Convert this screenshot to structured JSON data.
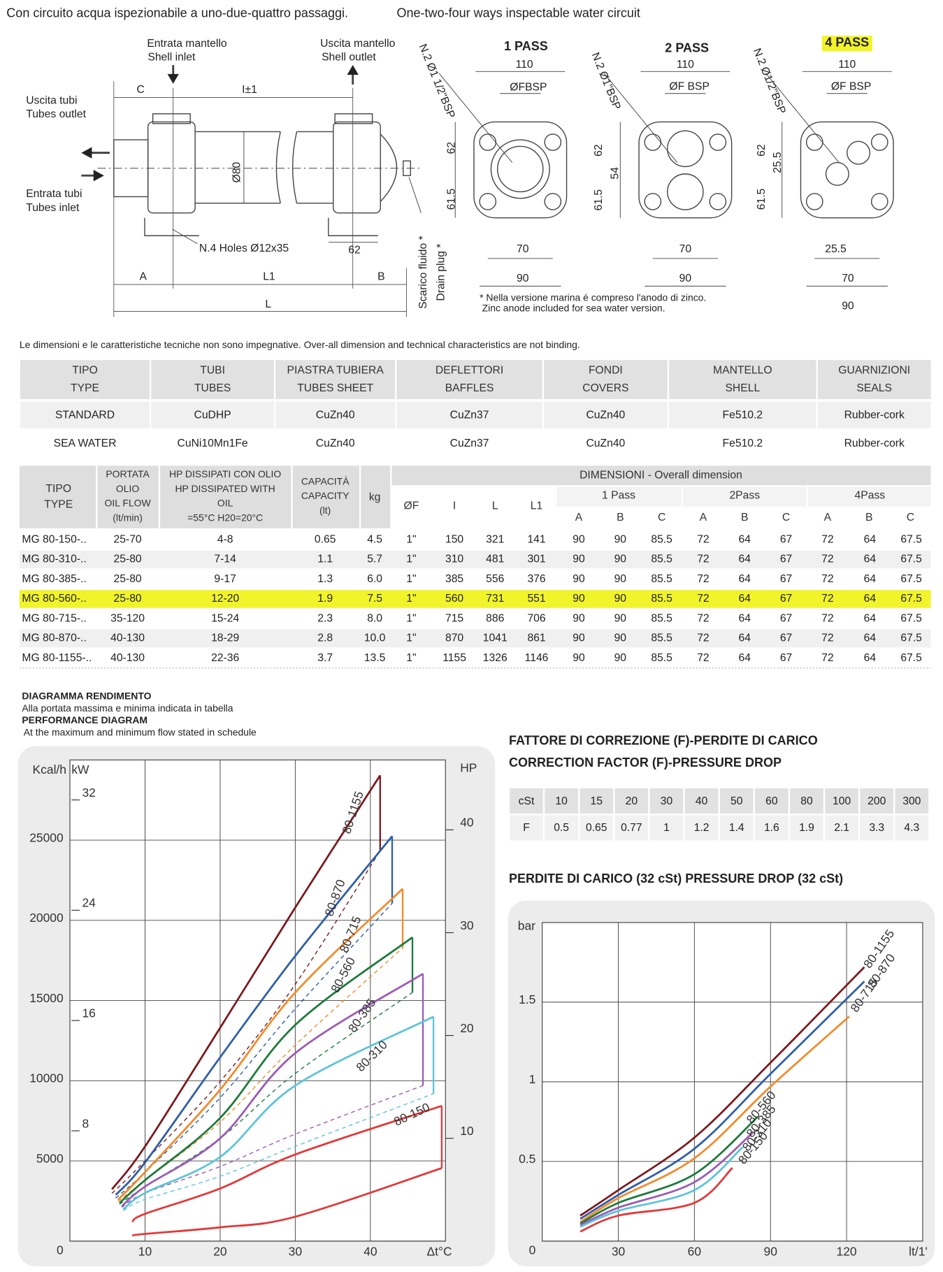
{
  "header": {
    "left": "Con circuito acqua ispezionabile a uno-due-quattro passaggi.",
    "right": "One-two-four ways inspectable water circuit"
  },
  "drawing": {
    "side_labels": [
      "Entrata mantello",
      "Shell inlet",
      "Uscita mantello",
      "Shell outlet",
      "Uscita tubi",
      "Tubes outlet",
      "Entrata tubi",
      "Tubes inlet",
      "C",
      "I±1",
      "Ø80",
      "N.4 Holes Ø12x35",
      "62",
      "A",
      "L1",
      "B",
      "L",
      "Scarico fluido *",
      "Drain plug *"
    ],
    "pass_views": [
      {
        "title": "1 PASS",
        "labels": [
          "110",
          "ØFBSP",
          "N.2 Ø1 1/2\"BSP",
          "62",
          "61.5",
          "70",
          "90"
        ]
      },
      {
        "title": "2 PASS",
        "labels": [
          "110",
          "ØF BSP",
          "N.2 Ø1\"BSP",
          "62",
          "61.5",
          "54",
          "70",
          "90"
        ]
      },
      {
        "title": "4 PASS",
        "labels": [
          "110",
          "ØF BSP",
          "N.2 Ø1/2\"BSP",
          "62",
          "25.5",
          "61.5",
          "25.5",
          "70",
          "90"
        ]
      }
    ],
    "footnote": [
      "* Nella versione marina é compreso l'anodo di zinco.",
      "Zinc anode included for sea water version."
    ]
  },
  "note": "Le dimensioni e le caratteristiche tecniche non sono impegnative. Over-all dimension and technical characteristics are not binding.",
  "materials_table": {
    "header": [
      [
        "TIPO",
        "TYPE"
      ],
      [
        "TUBI",
        "TUBES"
      ],
      [
        "PIASTRA TUBIERA",
        "TUBES SHEET"
      ],
      [
        "DEFLETTORI",
        "BAFFLES"
      ],
      [
        "FONDI",
        "COVERS"
      ],
      [
        "MANTELLO",
        "SHELL"
      ],
      [
        "GUARNIZIONI",
        "SEALS"
      ]
    ],
    "rows": [
      [
        "STANDARD",
        "CuDHP",
        "CuZn40",
        "CuZn37",
        "CuZn40",
        "Fe510.2",
        "Rubber-cork"
      ],
      [
        "SEA WATER",
        "CuNi10Mn1Fe",
        "CuZn40",
        "CuZn37",
        "CuZn40",
        "Fe510.2",
        "Rubber-cork"
      ]
    ]
  },
  "dimensions_table": {
    "header": {
      "type": [
        "TIPO",
        "TYPE"
      ],
      "flow": [
        "PORTATA",
        "OLIO",
        "OIL FLOW",
        "(lt/min)"
      ],
      "hp": [
        "HP DISSIPATI CON OLIO",
        "HP DISSIPATED WITH",
        "OIL",
        "=55°C H20=20°C"
      ],
      "capacity": [
        "CAPACITÀ",
        "CAPACITY",
        "(lt)"
      ],
      "weight": "kg",
      "dimensions": "DIMENSIONI - Overall dimension",
      "dims": [
        "ØF",
        "I",
        "L",
        "L1"
      ],
      "passes": [
        "1 Pass",
        "2Pass",
        "4Pass"
      ],
      "abc": [
        "A",
        "B",
        "C"
      ]
    },
    "rows": [
      [
        "MG 80-150-..",
        "25-70",
        "4-8",
        "0.65",
        "4.5",
        "1\"",
        "150",
        "321",
        "141",
        "90",
        "90",
        "85.5",
        "72",
        "64",
        "67",
        "72",
        "64",
        "67.5"
      ],
      [
        "MG 80-310-..",
        "25-80",
        "7-14",
        "1.1",
        "5.7",
        "1\"",
        "310",
        "481",
        "301",
        "90",
        "90",
        "85.5",
        "72",
        "64",
        "67",
        "72",
        "64",
        "67.5"
      ],
      [
        "MG 80-385-..",
        "25-80",
        "9-17",
        "1.3",
        "6.0",
        "1\"",
        "385",
        "556",
        "376",
        "90",
        "90",
        "85.5",
        "72",
        "64",
        "67",
        "72",
        "64",
        "67.5"
      ],
      [
        "MG 80-560-..",
        "25-80",
        "12-20",
        "1.9",
        "7.5",
        "1\"",
        "560",
        "731",
        "551",
        "90",
        "90",
        "85.5",
        "72",
        "64",
        "67",
        "72",
        "64",
        "67.5"
      ],
      [
        "MG 80-715-..",
        "35-120",
        "15-24",
        "2.3",
        "8.0",
        "1\"",
        "715",
        "886",
        "706",
        "90",
        "90",
        "85.5",
        "72",
        "64",
        "67",
        "72",
        "64",
        "67.5"
      ],
      [
        "MG 80-870-..",
        "40-130",
        "18-29",
        "2.8",
        "10.0",
        "1\"",
        "870",
        "1041",
        "861",
        "90",
        "90",
        "85.5",
        "72",
        "64",
        "67",
        "72",
        "64",
        "67.5"
      ],
      [
        "MG 80-1155-..",
        "40-130",
        "22-36",
        "3.7",
        "13.5",
        "1\"",
        "1155",
        "1326",
        "1146",
        "90",
        "90",
        "85.5",
        "72",
        "64",
        "67",
        "72",
        "64",
        "67.5"
      ]
    ],
    "highlight_row": 3
  },
  "correction_table": {
    "title": [
      "FATTORE DI CORREZIONE (F)-PERDITE DI CARICO",
      "CORRECTION FACTOR (F)-PRESSURE DROP"
    ],
    "rows": [
      [
        "cSt",
        "10",
        "15",
        "20",
        "30",
        "40",
        "50",
        "60",
        "80",
        "100",
        "200",
        "300"
      ],
      [
        "F",
        "0.5",
        "0.65",
        "0.77",
        "1",
        "1.2",
        "1.4",
        "1.6",
        "1.9",
        "2.1",
        "3.3",
        "4.3"
      ]
    ]
  },
  "chart_data": [
    {
      "type": "line",
      "title": "DIAGRAMMA RENDIMENTO",
      "subtitle": "Alla portata massima e minima indicata in tabella",
      "title_en": "PERFORMANCE DIAGRAM",
      "subtitle_en": "At the maximum and minimum flow stated in schedule",
      "y_label": "Kcal/h",
      "y2_label": "kW",
      "y3_label": "HP",
      "x_label": "Δt°C",
      "xlim": [
        0,
        50
      ],
      "xticks": [
        10,
        20,
        30,
        40
      ],
      "ylim": [
        0,
        30000
      ],
      "yticks": [
        0,
        5000,
        10000,
        15000,
        20000,
        25000
      ],
      "y2lim": [
        0,
        34.9
      ],
      "y2ticks": [
        8,
        16,
        24,
        32
      ],
      "y3lim": [
        0,
        46.8
      ],
      "y3ticks": [
        10,
        20,
        30,
        40
      ],
      "grid": true,
      "series": [
        {
          "name": "80-1155",
          "color": "#7b1a1f",
          "x": [
            5.6,
            10,
            20,
            30,
            41.3
          ],
          "values": [
            3230,
            5900,
            13300,
            20800,
            29040
          ],
          "min_values": [
            2980,
            5000,
            9950,
            16010,
            24340
          ],
          "min_dashed": true
        },
        {
          "name": "80-870",
          "color": "#2f5ea8",
          "x": [
            6.1,
            10,
            20,
            30,
            42.9
          ],
          "values": [
            2880,
            4900,
            11460,
            17780,
            25250
          ],
          "min_values": [
            2680,
            4300,
            8940,
            14490,
            21060
          ],
          "min_dashed": true
        },
        {
          "name": "80-715",
          "color": "#f28b2c",
          "x": [
            6.4,
            10,
            20,
            30,
            44.3
          ],
          "values": [
            2580,
            4300,
            9440,
            15500,
            21970
          ],
          "min_values": [
            2470,
            3800,
            7420,
            12220,
            18280
          ],
          "min_dashed": true
        },
        {
          "name": "80-560",
          "color": "#1d7a3c",
          "x": [
            6.6,
            10,
            20,
            30,
            45.6
          ],
          "values": [
            2370,
            3800,
            7680,
            13480,
            18940
          ],
          "min_values": [
            2300,
            3400,
            6410,
            10450,
            15500
          ],
          "min_dashed": true
        },
        {
          "name": "80-385",
          "color": "#9b5bb5",
          "x": [
            6.9,
            10,
            20,
            30,
            47
          ],
          "values": [
            2170,
            3400,
            6410,
            11720,
            16670
          ],
          "min_values": [
            2100,
            3000,
            4650,
            6670,
            9700
          ],
          "min_dashed": true
        },
        {
          "name": "80-310",
          "color": "#5cc4d9",
          "x": [
            7.1,
            10,
            20,
            30,
            48.4
          ],
          "values": [
            1970,
            3000,
            5250,
            9700,
            13990
          ],
          "min_values": [
            1900,
            2600,
            4040,
            5910,
            9190
          ],
          "min_dashed": true
        },
        {
          "name": "80-150",
          "color": "#e2393b",
          "x": [
            8.3,
            10,
            20,
            30,
            49.5
          ],
          "values": [
            1210,
            1700,
            3280,
            5400,
            8430
          ],
          "min_values": [
            350,
            450,
            860,
            1520,
            4550
          ],
          "min_dashed": false
        }
      ]
    },
    {
      "type": "line",
      "title": "PERDITE DI CARICO (32 cSt) PRESSURE DROP (32 cSt)",
      "y_label": "bar",
      "x_label": "lt/1'",
      "xlim": [
        0,
        150
      ],
      "xticks": [
        30,
        60,
        90,
        120
      ],
      "ylim": [
        0,
        2
      ],
      "yticks": [
        0,
        0.5,
        1,
        1.5
      ],
      "grid": true,
      "series": [
        {
          "name": "80-1155",
          "color": "#7b1a1f",
          "x": [
            15,
            30,
            60,
            90,
            127
          ],
          "values": [
            0.16,
            0.32,
            0.65,
            1.12,
            1.72
          ]
        },
        {
          "name": "80-870",
          "color": "#2f5ea8",
          "x": [
            15,
            30,
            60,
            90,
            127
          ],
          "values": [
            0.14,
            0.29,
            0.58,
            1.05,
            1.63
          ]
        },
        {
          "name": "80-715",
          "color": "#f28b2c",
          "x": [
            15,
            30,
            60,
            90,
            121
          ],
          "values": [
            0.12,
            0.27,
            0.52,
            0.97,
            1.41
          ]
        },
        {
          "name": "80-560",
          "color": "#1d7a3c",
          "x": [
            15,
            30,
            60,
            85
          ],
          "values": [
            0.11,
            0.24,
            0.42,
            0.78
          ]
        },
        {
          "name": "80-385",
          "color": "#9b5bb5",
          "x": [
            15,
            30,
            60,
            83
          ],
          "values": [
            0.1,
            0.21,
            0.37,
            0.68
          ]
        },
        {
          "name": "80-310",
          "color": "#5cc4d9",
          "x": [
            15,
            30,
            60,
            79
          ],
          "values": [
            0.09,
            0.19,
            0.32,
            0.59
          ]
        },
        {
          "name": "80-150",
          "color": "#e2393b",
          "x": [
            15,
            30,
            60,
            75
          ],
          "values": [
            0.06,
            0.16,
            0.24,
            0.46
          ]
        }
      ]
    }
  ]
}
